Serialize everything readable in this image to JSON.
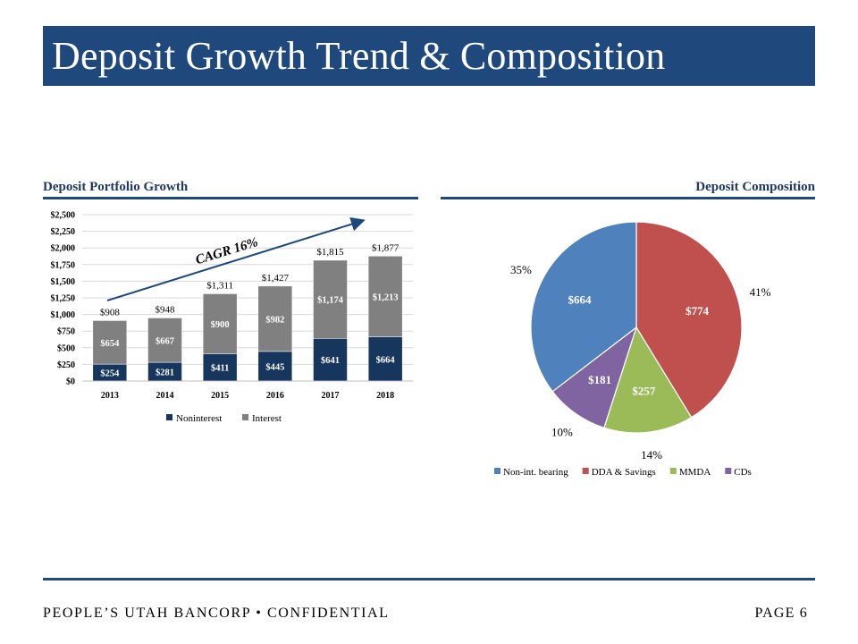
{
  "title": "Deposit Growth Trend & Composition",
  "left_section_title": "Deposit Portfolio Growth",
  "right_section_title": "Deposit Composition",
  "footer": {
    "left": "PEOPLE’S UTAH BANCORP • CONFIDENTIAL",
    "right": "PAGE 6"
  },
  "colors": {
    "title_bar": "#1F497D",
    "noninterest": "#17365D",
    "interest": "#808080",
    "non_int": "#4F81BD",
    "dda": "#C0504D",
    "mmda": "#9BBB59",
    "cds": "#8064A2"
  },
  "chart_data": [
    {
      "type": "bar",
      "stacked": true,
      "title": "Deposit Portfolio Growth",
      "categories": [
        "2013",
        "2014",
        "2015",
        "2016",
        "2017",
        "2018"
      ],
      "series": [
        {
          "name": "Noninterest",
          "values": [
            254,
            281,
            411,
            445,
            641,
            664
          ],
          "labels": [
            "$254",
            "$281",
            "$411",
            "$445",
            "$641",
            "$664"
          ]
        },
        {
          "name": "Interest",
          "values": [
            654,
            667,
            900,
            982,
            1174,
            1213
          ],
          "labels": [
            "$654",
            "$667",
            "$900",
            "$982",
            "$1,174",
            "$1,213"
          ]
        }
      ],
      "totals": [
        "$908",
        "$948",
        "$1,311",
        "$1,427",
        "$1,815",
        "$1,877"
      ],
      "ylim": [
        0,
        2500
      ],
      "yticks": [
        "$0",
        "$250",
        "$500",
        "$750",
        "$1,000",
        "$1,250",
        "$1,500",
        "$1,750",
        "$2,000",
        "$2,250",
        "$2,500"
      ],
      "annotation": "CAGR 16%",
      "legend": "bottom"
    },
    {
      "type": "pie",
      "title": "Deposit Composition",
      "slices": [
        {
          "name": "DDA & Savings",
          "value": 774,
          "label": "$774",
          "percent": "41%"
        },
        {
          "name": "MMDA",
          "value": 257,
          "label": "$257",
          "percent": "14%"
        },
        {
          "name": "CDs",
          "value": 181,
          "label": "$181",
          "percent": "10%"
        },
        {
          "name": "Non-int. bearing",
          "value": 664,
          "label": "$664",
          "percent": "35%"
        }
      ],
      "legend_order": [
        "Non-int. bearing",
        "DDA & Savings",
        "MMDA",
        "CDs"
      ],
      "legend": "bottom"
    }
  ]
}
